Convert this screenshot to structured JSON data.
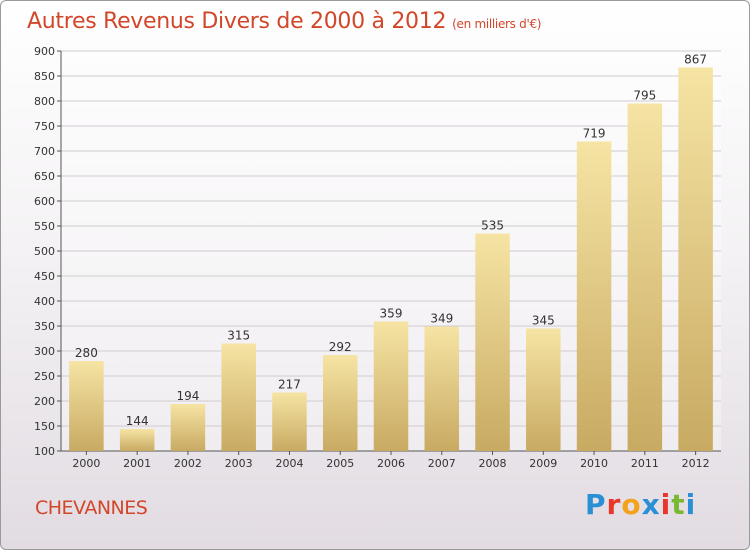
{
  "header": {
    "title": "Autres Revenus Divers de 2000 à 2012",
    "subtitle": "(en milliers d'€)"
  },
  "footer": {
    "city": "CHEVANNES",
    "logo_letters": [
      "P",
      "r",
      "o",
      "x",
      "i",
      "t",
      "i"
    ],
    "logo_colors": [
      "#2b8fd6",
      "#e8362a",
      "#f4a21c",
      "#2b8fd6",
      "#e8362a",
      "#7ab833",
      "#2b8fd6"
    ]
  },
  "colors": {
    "title": "#d2462a",
    "bar_light": "#f6e4a4",
    "bar_dark": "#c8aa62"
  },
  "chart_data": {
    "type": "bar",
    "categories": [
      "2000",
      "2001",
      "2002",
      "2003",
      "2004",
      "2005",
      "2006",
      "2007",
      "2008",
      "2009",
      "2010",
      "2011",
      "2012"
    ],
    "values": [
      280,
      144,
      194,
      315,
      217,
      292,
      359,
      349,
      535,
      345,
      719,
      795,
      867
    ],
    "ylim": [
      100,
      900
    ],
    "yticks": [
      100,
      150,
      200,
      250,
      300,
      350,
      400,
      450,
      500,
      550,
      600,
      650,
      700,
      750,
      800,
      850,
      900
    ],
    "grid": true,
    "data_labels": true
  }
}
